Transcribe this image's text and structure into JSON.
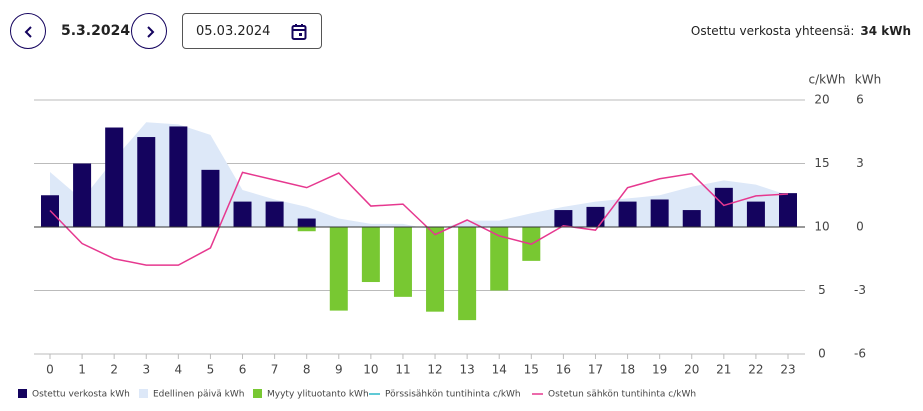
{
  "header": {
    "date": "5.3.2024",
    "input_date": "05.03.2024",
    "total_label": "Ostettu verkosta yhteensä:",
    "total_value": "34 kWh"
  },
  "chart_data": {
    "type": "bar",
    "y_label": "c/kWh",
    "y2_label": "kWh",
    "categories": [
      "0",
      "1",
      "2",
      "3",
      "4",
      "5",
      "6",
      "7",
      "8",
      "9",
      "10",
      "11",
      "12",
      "13",
      "14",
      "15",
      "16",
      "17",
      "18",
      "19",
      "20",
      "21",
      "22",
      "23"
    ],
    "ylim": [
      0,
      20
    ],
    "yticks": [
      0,
      5,
      10,
      15,
      20
    ],
    "y2lim": [
      -6,
      6
    ],
    "y2ticks": [
      -6,
      -3,
      0,
      3,
      6
    ],
    "grid": true,
    "series": [
      {
        "name": "Ostettu verkosta kWh",
        "type": "bar",
        "axis": "y2",
        "color": "#14035e",
        "values": [
          1.5,
          3.0,
          4.7,
          4.25,
          4.75,
          2.7,
          1.2,
          1.2,
          0.4,
          0,
          0,
          0,
          0,
          0,
          0,
          0,
          0.8,
          0.95,
          1.2,
          1.3,
          0.8,
          1.85,
          1.2,
          1.6
        ]
      },
      {
        "name": "Edellinen päivä kWh",
        "type": "area",
        "axis": "y2",
        "color": "#dde8f8",
        "values": [
          2.6,
          1.3,
          3.2,
          4.95,
          4.85,
          4.35,
          1.75,
          1.3,
          0.95,
          0.4,
          0.15,
          0.15,
          -0.15,
          0.3,
          0.3,
          0.65,
          0.95,
          1.2,
          1.35,
          1.5,
          1.9,
          2.2,
          2.0,
          1.5
        ]
      },
      {
        "name": "Myyty ylituotanto kWh",
        "type": "bar",
        "axis": "y2",
        "color": "#78c832",
        "values": [
          0,
          0,
          0,
          0,
          0,
          0,
          0,
          0,
          -0.2,
          -3.95,
          -2.6,
          -3.3,
          -4.0,
          -4.4,
          -3.0,
          -1.6,
          0,
          0,
          0,
          0,
          0,
          0,
          0,
          0
        ]
      },
      {
        "name": "Pörssisähkön tuntihinta c/kWh",
        "type": "line",
        "color": "#2bb8c8"
      },
      {
        "name": "Ostetun sähkön tuntihinta c/kWh",
        "type": "line",
        "color": "#e6388f",
        "values": [
          11.3,
          8.7,
          7.5,
          7.0,
          7.0,
          8.35,
          14.3,
          13.7,
          13.1,
          14.25,
          11.65,
          11.8,
          9.4,
          10.55,
          9.3,
          8.65,
          10.1,
          9.75,
          13.1,
          13.8,
          14.2,
          11.7,
          12.45,
          12.6
        ]
      }
    ]
  }
}
